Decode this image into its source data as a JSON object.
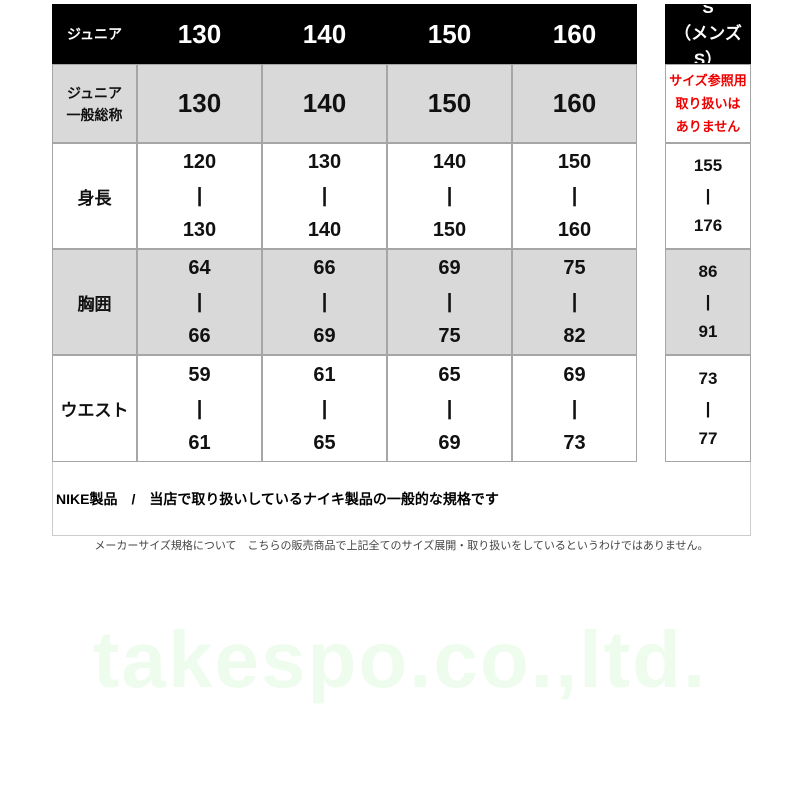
{
  "watermark": "takespo.co.,ltd.",
  "header": {
    "label": "ジュニア",
    "sizes": [
      "130",
      "140",
      "150",
      "160"
    ],
    "mens_size": "S",
    "mens_label": "（メンズS）"
  },
  "general": {
    "label_line1": "ジュニア",
    "label_line2": "一般総称",
    "sizes": [
      "130",
      "140",
      "150",
      "160"
    ],
    "mens_note": [
      "サイズ参照用",
      "取り扱いは",
      "ありません"
    ]
  },
  "rows": [
    {
      "label": "身長",
      "values": [
        [
          "120",
          "130"
        ],
        [
          "130",
          "140"
        ],
        [
          "140",
          "150"
        ],
        [
          "150",
          "160"
        ]
      ],
      "mens": [
        "155",
        "176"
      ]
    },
    {
      "label": "胸囲",
      "values": [
        [
          "64",
          "66"
        ],
        [
          "66",
          "69"
        ],
        [
          "69",
          "75"
        ],
        [
          "75",
          "82"
        ]
      ],
      "mens": [
        "86",
        "91"
      ]
    },
    {
      "label": "ウエスト",
      "values": [
        [
          "59",
          "61"
        ],
        [
          "61",
          "65"
        ],
        [
          "65",
          "69"
        ],
        [
          "69",
          "73"
        ]
      ],
      "mens": [
        "73",
        "77"
      ]
    }
  ],
  "separator": "|",
  "note": "NIKE製品　/　当店で取り扱いしているナイキ製品の一般的な規格です",
  "footer": "メーカーサイズ規格について　こちらの販売商品で上記全てのサイズ展開・取り扱いをしているというわけではありません。",
  "colors": {
    "header_bg": "#000000",
    "gray_row": "#d9d9d9",
    "notice_red": "#ee0000"
  }
}
